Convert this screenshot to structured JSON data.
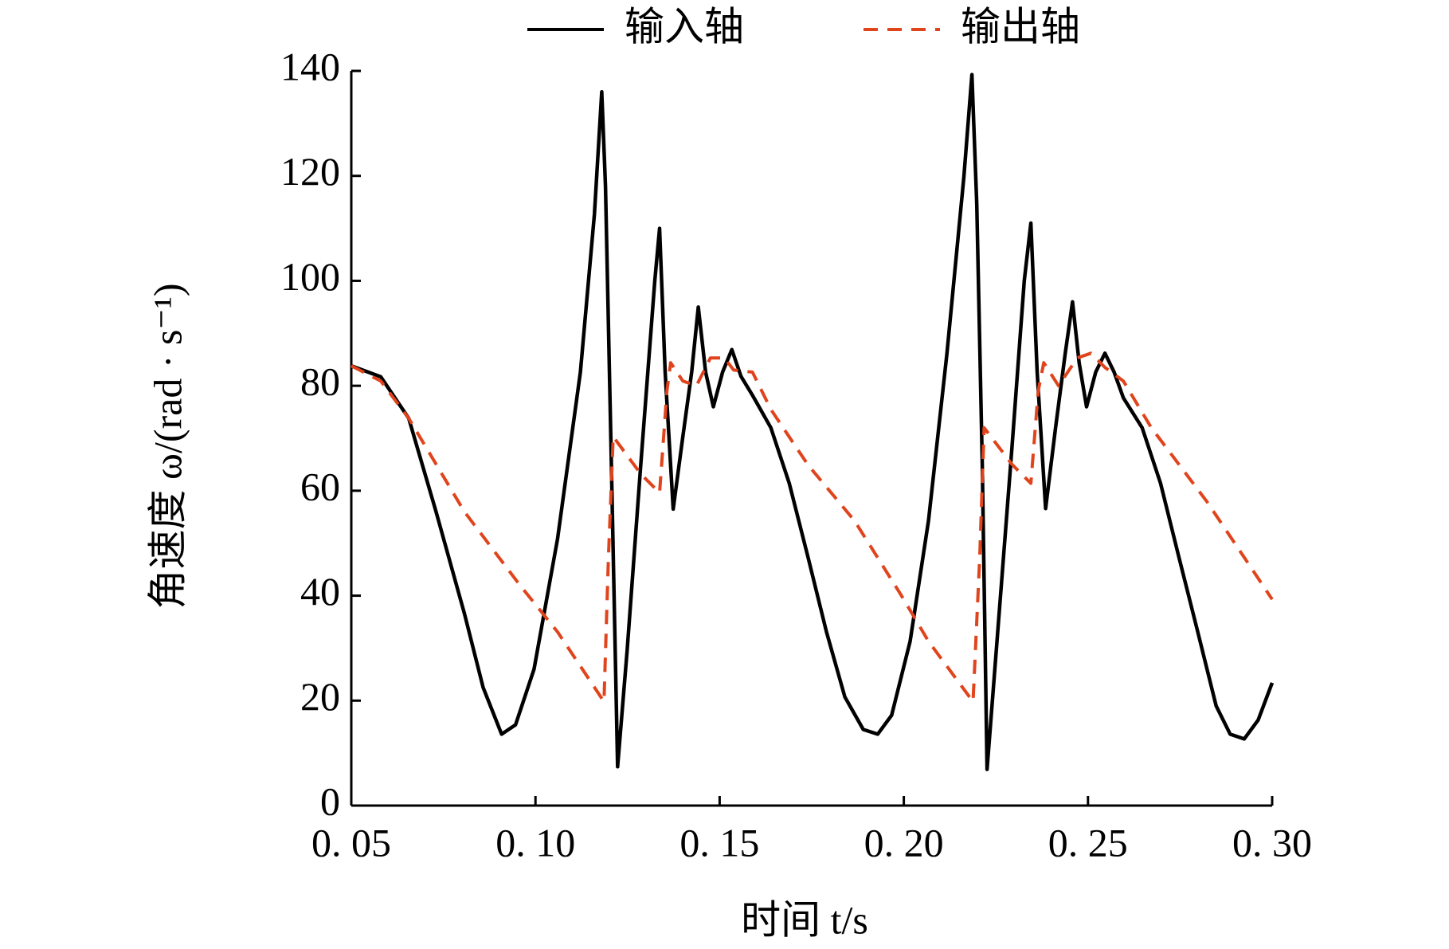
{
  "chart_data": {
    "type": "line",
    "x_label": "时间 t/s",
    "y_label": "角速度 ω/(rad · s⁻¹)",
    "xlim": [
      0.05,
      0.3
    ],
    "ylim": [
      0,
      140
    ],
    "xticks": [
      {
        "value": 0.05,
        "label": "0. 05"
      },
      {
        "value": 0.1,
        "label": "0. 10"
      },
      {
        "value": 0.15,
        "label": "0. 15"
      },
      {
        "value": 0.2,
        "label": "0. 20"
      },
      {
        "value": 0.25,
        "label": "0. 25"
      },
      {
        "value": 0.3,
        "label": "0. 30"
      }
    ],
    "yticks": [
      0,
      20,
      40,
      60,
      80,
      100,
      120,
      140
    ],
    "legend": "top",
    "series": [
      {
        "name": "输入轴",
        "color": "#000000",
        "dash": false,
        "x": [
          0.05,
          0.058,
          0.0656,
          0.073,
          0.0807,
          0.0858,
          0.0908,
          0.0946,
          0.0996,
          0.106,
          0.1122,
          0.116,
          0.118,
          0.119,
          0.1206,
          0.1223,
          0.1249,
          0.1286,
          0.1324,
          0.1337,
          0.1352,
          0.1374,
          0.14,
          0.1424,
          0.1442,
          0.1462,
          0.1483,
          0.1508,
          0.1533,
          0.1558,
          0.1589,
          0.1639,
          0.1689,
          0.174,
          0.179,
          0.184,
          0.189,
          0.1929,
          0.1967,
          0.2017,
          0.2067,
          0.2117,
          0.2163,
          0.2185,
          0.2198,
          0.2213,
          0.2226,
          0.2251,
          0.2294,
          0.2327,
          0.2345,
          0.2362,
          0.2385,
          0.2412,
          0.2438,
          0.2458,
          0.2476,
          0.2496,
          0.2521,
          0.2546,
          0.2571,
          0.2596,
          0.2647,
          0.2697,
          0.2747,
          0.2798,
          0.2848,
          0.2886,
          0.2924,
          0.2962,
          0.3
        ],
        "values": [
          83.8,
          81.7,
          73.8,
          56,
          36.6,
          22.5,
          13.6,
          15.4,
          26,
          50.8,
          82.6,
          112.7,
          136,
          118,
          65,
          7.4,
          29.6,
          65,
          100,
          110,
          82.6,
          56.5,
          70.3,
          82.6,
          95,
          82.6,
          76,
          82.6,
          86.9,
          81.8,
          78.2,
          72,
          61.4,
          47.3,
          33.1,
          20.7,
          14.5,
          13.6,
          17.2,
          31.3,
          54.3,
          86.1,
          119.8,
          139.3,
          114.5,
          65,
          6.9,
          29.6,
          68.5,
          100,
          111,
          82.6,
          56.6,
          72,
          86,
          96,
          84.4,
          76,
          82.6,
          86.2,
          82.6,
          77.7,
          72,
          61.4,
          47.3,
          33.1,
          19,
          13.6,
          12.7,
          16.3,
          23.4
        ]
      },
      {
        "name": "输出轴",
        "color": "#e0441c",
        "dash": true,
        "x": [
          0.05,
          0.058,
          0.0656,
          0.0807,
          0.0959,
          0.106,
          0.1186,
          0.1198,
          0.1211,
          0.1286,
          0.1337,
          0.1357,
          0.1367,
          0.14,
          0.1437,
          0.1475,
          0.1513,
          0.1538,
          0.1589,
          0.1639,
          0.174,
          0.1866,
          0.1992,
          0.2067,
          0.2188,
          0.2206,
          0.2218,
          0.2294,
          0.2345,
          0.2365,
          0.238,
          0.242,
          0.2471,
          0.2508,
          0.2546,
          0.2596,
          0.2672,
          0.2823,
          0.2924,
          0.3
        ],
        "values": [
          83.8,
          80.9,
          73.8,
          56,
          41.9,
          33.1,
          19.8,
          47.3,
          70.3,
          63.2,
          59.6,
          79.1,
          84.4,
          80.9,
          80,
          85.3,
          85.3,
          83,
          82.6,
          75.5,
          64.9,
          54.3,
          40.2,
          31.3,
          19.8,
          47.3,
          72,
          65,
          61.4,
          79.1,
          84.4,
          80,
          85.3,
          86.2,
          83.5,
          80.9,
          72,
          57.9,
          47.3,
          39.3
        ]
      }
    ]
  }
}
